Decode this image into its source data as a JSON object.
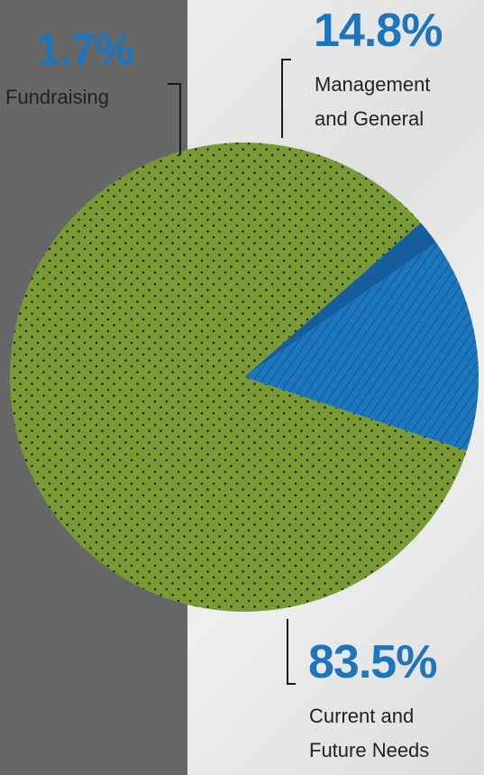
{
  "chart_data": {
    "type": "pie",
    "slices": [
      {
        "label_lines": [
          "Management",
          "and General"
        ],
        "pct_label": "14.8%",
        "value": 14.8,
        "color": "#1b76bd"
      },
      {
        "label_lines": [
          "Current and",
          "Future Needs"
        ],
        "pct_label": "83.5%",
        "value": 83.5,
        "color": "#7a9a33"
      },
      {
        "label_lines": [
          "Fundraising"
        ],
        "pct_label": "1.7%",
        "value": 1.7,
        "color": "#145e9e"
      }
    ]
  }
}
